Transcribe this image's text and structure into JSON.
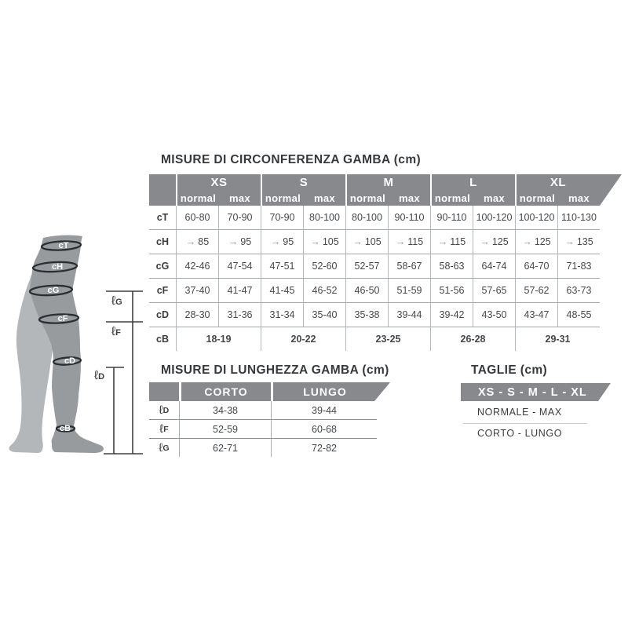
{
  "colors": {
    "header_bar": "#87898c",
    "text_dark": "#3a3d40",
    "text_body": "#45484b",
    "text_white": "#ffffff",
    "grid_line_light": "#b7babc",
    "grid_line_dark": "#8c8f92",
    "leg_front": "#989b9e",
    "leg_back": "#b4b7b9",
    "band_stroke": "#2a2d31",
    "arrow": "#8d9093"
  },
  "leg_diagram": {
    "band_labels": [
      "cT",
      "cH",
      "cG",
      "cF",
      "cD",
      "cB"
    ],
    "length_labels": [
      {
        "symbol": "ℓ",
        "letter": "G"
      },
      {
        "symbol": "ℓ",
        "letter": "F"
      },
      {
        "symbol": "ℓ",
        "letter": "D"
      }
    ]
  },
  "circumference_table": {
    "title": "MISURE DI CIRCONFERENZA GAMBA (cm)",
    "sizes": [
      "XS",
      "S",
      "M",
      "L",
      "XL"
    ],
    "sub_headers": [
      "normal",
      "max"
    ],
    "rows": [
      {
        "label": "cT",
        "values": [
          "60-80",
          "70-90",
          "70-90",
          "80-100",
          "80-100",
          "90-110",
          "90-110",
          "100-120",
          "100-120",
          "110-130"
        ]
      },
      {
        "label": "cH",
        "values": [
          "→ 85",
          "→ 95",
          "→ 95",
          "→ 105",
          "→ 105",
          "→ 115",
          "→ 115",
          "→ 125",
          "→ 125",
          "→ 135"
        ]
      },
      {
        "label": "cG",
        "values": [
          "42-46",
          "47-54",
          "47-51",
          "52-60",
          "52-57",
          "58-67",
          "58-63",
          "64-74",
          "64-70",
          "71-83"
        ]
      },
      {
        "label": "cF",
        "values": [
          "37-40",
          "41-47",
          "41-45",
          "46-52",
          "46-50",
          "51-59",
          "51-56",
          "57-65",
          "57-62",
          "63-73"
        ]
      },
      {
        "label": "cD",
        "values": [
          "28-30",
          "31-36",
          "31-34",
          "35-40",
          "35-38",
          "39-44",
          "39-42",
          "43-50",
          "43-47",
          "48-55"
        ]
      },
      {
        "label": "cB",
        "span": true,
        "values": [
          "18-19",
          "20-22",
          "23-25",
          "26-28",
          "29-31"
        ]
      }
    ]
  },
  "length_table": {
    "title": "MISURE DI LUNGHEZZA GAMBA (cm)",
    "columns": [
      "CORTO",
      "LUNGO"
    ],
    "rows": [
      {
        "symbol": "ℓ",
        "letter": "D",
        "values": [
          "34-38",
          "39-44"
        ]
      },
      {
        "symbol": "ℓ",
        "letter": "F",
        "values": [
          "52-59",
          "60-68"
        ]
      },
      {
        "symbol": "ℓ",
        "letter": "G",
        "values": [
          "62-71",
          "72-82"
        ]
      }
    ]
  },
  "sizes_panel": {
    "title": "TAGLIE (cm)",
    "bar_label": "XS - S - M - L - XL",
    "line1": "NORMALE - MAX",
    "line2": "CORTO - LUNGO"
  }
}
